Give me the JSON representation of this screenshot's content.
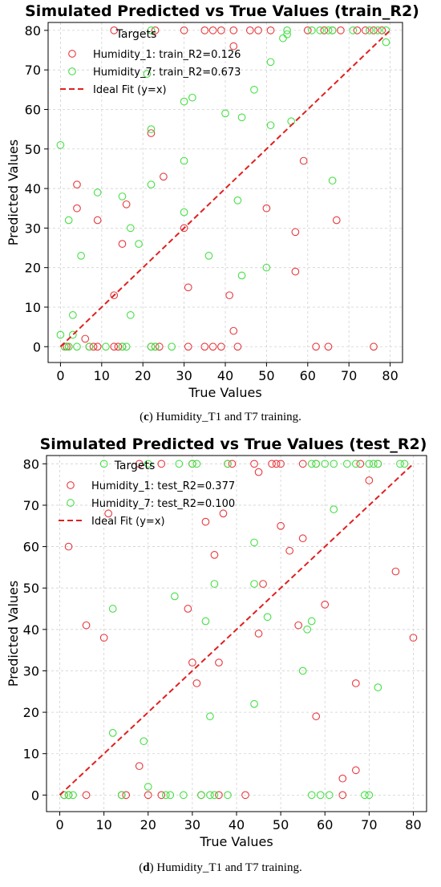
{
  "chart_data": [
    {
      "type": "scatter",
      "title": "Simulated Predicted vs True Values (train_R2)",
      "xlabel": "True Values",
      "ylabel": "Predicted Values",
      "xlim": [
        -3,
        83
      ],
      "ylim": [
        -4,
        82
      ],
      "xticks": [
        0,
        10,
        20,
        30,
        40,
        50,
        60,
        70,
        80
      ],
      "yticks": [
        0,
        10,
        20,
        30,
        40,
        50,
        60,
        70,
        80
      ],
      "grid": true,
      "legend_title": "Targets",
      "legend_position": "top-center",
      "series": [
        {
          "name": "Humidity_1: train_R2=0.126",
          "color": "#e8383d",
          "points": [
            [
              13,
              80
            ],
            [
              23,
              80
            ],
            [
              30,
              80
            ],
            [
              35,
              80
            ],
            [
              37,
              80
            ],
            [
              39,
              80
            ],
            [
              42,
              80
            ],
            [
              46,
              80
            ],
            [
              48,
              80
            ],
            [
              51,
              80
            ],
            [
              60,
              80
            ],
            [
              64,
              80
            ],
            [
              66,
              80
            ],
            [
              68,
              80
            ],
            [
              72,
              80
            ],
            [
              74,
              80
            ],
            [
              76,
              80
            ],
            [
              78,
              80
            ],
            [
              42,
              76
            ],
            [
              22,
              54
            ],
            [
              4,
              41
            ],
            [
              25,
              43
            ],
            [
              9,
              32
            ],
            [
              16,
              36
            ],
            [
              4,
              35
            ],
            [
              15,
              26
            ],
            [
              30,
              30
            ],
            [
              31,
              15
            ],
            [
              13,
              13
            ],
            [
              59,
              47
            ],
            [
              50,
              35
            ],
            [
              57,
              29
            ],
            [
              67,
              32
            ],
            [
              41,
              13
            ],
            [
              57,
              19
            ],
            [
              42,
              4
            ],
            [
              6,
              2
            ],
            [
              1,
              0
            ],
            [
              1.5,
              0
            ],
            [
              2,
              0
            ],
            [
              7,
              0
            ],
            [
              8,
              0
            ],
            [
              9,
              0
            ],
            [
              13,
              0
            ],
            [
              14,
              0
            ],
            [
              15,
              0
            ],
            [
              22,
              0
            ],
            [
              23,
              0
            ],
            [
              24,
              0
            ],
            [
              31,
              0
            ],
            [
              35,
              0
            ],
            [
              37,
              0
            ],
            [
              39,
              0
            ],
            [
              43,
              0
            ],
            [
              62,
              0
            ],
            [
              65,
              0
            ],
            [
              76,
              0
            ]
          ]
        },
        {
          "name": "Humidity_7: train_R2=0.673",
          "color": "#44e044",
          "points": [
            [
              22,
              80
            ],
            [
              55,
              80
            ],
            [
              61,
              80
            ],
            [
              63,
              80
            ],
            [
              65,
              80
            ],
            [
              66,
              80
            ],
            [
              71,
              80
            ],
            [
              75,
              80
            ],
            [
              77,
              80
            ],
            [
              79,
              80
            ],
            [
              54,
              78
            ],
            [
              55,
              79
            ],
            [
              79,
              77
            ],
            [
              21,
              69
            ],
            [
              51,
              72
            ],
            [
              47,
              65
            ],
            [
              30,
              62
            ],
            [
              32,
              63
            ],
            [
              40,
              59
            ],
            [
              44,
              58
            ],
            [
              51,
              56
            ],
            [
              56,
              57
            ],
            [
              22,
              55
            ],
            [
              0,
              51
            ],
            [
              30,
              47
            ],
            [
              9,
              39
            ],
            [
              15,
              38
            ],
            [
              22,
              41
            ],
            [
              43,
              37
            ],
            [
              66,
              42
            ],
            [
              2,
              32
            ],
            [
              17,
              30
            ],
            [
              30,
              34
            ],
            [
              19,
              26
            ],
            [
              5,
              23
            ],
            [
              36,
              23
            ],
            [
              44,
              18
            ],
            [
              50,
              20
            ],
            [
              3,
              8
            ],
            [
              17,
              8
            ],
            [
              0,
              3
            ],
            [
              3,
              3
            ],
            [
              1,
              0
            ],
            [
              2,
              0
            ],
            [
              4,
              0
            ],
            [
              7,
              0
            ],
            [
              11,
              0
            ],
            [
              15,
              0
            ],
            [
              16,
              0
            ],
            [
              22,
              0
            ],
            [
              23,
              0
            ],
            [
              27,
              0
            ]
          ]
        },
        {
          "name": "Ideal Fit (y=x)",
          "color": "#e02020",
          "style": "dashed",
          "line": [
            [
              0,
              0
            ],
            [
              80,
              80
            ]
          ]
        }
      ]
    },
    {
      "type": "scatter",
      "title": "Simulated Predicted vs True Values (test_R2)",
      "xlabel": "True Values",
      "ylabel": "Predicted Values",
      "xlim": [
        -3,
        83
      ],
      "ylim": [
        -4,
        82
      ],
      "xticks": [
        0,
        10,
        20,
        30,
        40,
        50,
        60,
        70,
        80
      ],
      "yticks": [
        0,
        10,
        20,
        30,
        40,
        50,
        60,
        70,
        80
      ],
      "grid": true,
      "legend_title": "Targets",
      "legend_position": "top-center",
      "series": [
        {
          "name": "Humidity_1: test_R2=0.377",
          "color": "#e8383d",
          "points": [
            [
              18,
              80
            ],
            [
              23,
              80
            ],
            [
              30,
              80
            ],
            [
              38,
              80
            ],
            [
              39,
              80
            ],
            [
              44,
              80
            ],
            [
              48,
              80
            ],
            [
              49,
              80
            ],
            [
              50,
              80
            ],
            [
              55,
              80
            ],
            [
              58,
              80
            ],
            [
              68,
              80
            ],
            [
              72,
              80
            ],
            [
              45,
              78
            ],
            [
              70,
              76
            ],
            [
              11,
              68
            ],
            [
              37,
              68
            ],
            [
              33,
              66
            ],
            [
              50,
              65
            ],
            [
              2,
              60
            ],
            [
              35,
              58
            ],
            [
              52,
              59
            ],
            [
              55,
              62
            ],
            [
              76,
              54
            ],
            [
              29,
              45
            ],
            [
              46,
              51
            ],
            [
              60,
              46
            ],
            [
              6,
              41
            ],
            [
              10,
              38
            ],
            [
              45,
              39
            ],
            [
              54,
              41
            ],
            [
              30,
              32
            ],
            [
              36,
              32
            ],
            [
              31,
              27
            ],
            [
              67,
              27
            ],
            [
              80,
              38
            ],
            [
              58,
              19
            ],
            [
              18,
              7
            ],
            [
              67,
              6
            ],
            [
              64,
              4
            ],
            [
              1,
              0
            ],
            [
              2,
              0
            ],
            [
              6,
              0
            ],
            [
              14,
              0
            ],
            [
              15,
              0
            ],
            [
              20,
              0
            ],
            [
              23,
              0
            ],
            [
              32,
              0
            ],
            [
              36,
              0
            ],
            [
              42,
              0
            ],
            [
              64,
              0
            ]
          ]
        },
        {
          "name": "Humidity_7: test_R2=0.100",
          "color": "#44e044",
          "points": [
            [
              10,
              80
            ],
            [
              20,
              80
            ],
            [
              27,
              80
            ],
            [
              30,
              80
            ],
            [
              31,
              80
            ],
            [
              38,
              80
            ],
            [
              57,
              80
            ],
            [
              58,
              80
            ],
            [
              60,
              80
            ],
            [
              62,
              80
            ],
            [
              65,
              80
            ],
            [
              67,
              80
            ],
            [
              70,
              80
            ],
            [
              71,
              80
            ],
            [
              72,
              80
            ],
            [
              77,
              80
            ],
            [
              78,
              80
            ],
            [
              62,
              69
            ],
            [
              44,
              61
            ],
            [
              26,
              48
            ],
            [
              35,
              51
            ],
            [
              44,
              51
            ],
            [
              12,
              45
            ],
            [
              33,
              42
            ],
            [
              47,
              43
            ],
            [
              56,
              40
            ],
            [
              57,
              42
            ],
            [
              55,
              30
            ],
            [
              72,
              26
            ],
            [
              44,
              22
            ],
            [
              34,
              19
            ],
            [
              12,
              15
            ],
            [
              19,
              13
            ],
            [
              20,
              2
            ],
            [
              1,
              0
            ],
            [
              2,
              0
            ],
            [
              3,
              0
            ],
            [
              14,
              0
            ],
            [
              24,
              0
            ],
            [
              25,
              0
            ],
            [
              28,
              0
            ],
            [
              32,
              0
            ],
            [
              34,
              0
            ],
            [
              35,
              0
            ],
            [
              38,
              0
            ],
            [
              57,
              0
            ],
            [
              59,
              0
            ],
            [
              61,
              0
            ],
            [
              69,
              0
            ],
            [
              70,
              0
            ]
          ]
        },
        {
          "name": "Ideal Fit (y=x)",
          "color": "#e02020",
          "style": "dashed",
          "line": [
            [
              0,
              0
            ],
            [
              80,
              80
            ]
          ]
        }
      ]
    }
  ],
  "captions": [
    {
      "label": "c",
      "text": "Humidity_T1 and T7 training."
    },
    {
      "label": "d",
      "text": "Humidity_T1 and T7 training."
    }
  ]
}
